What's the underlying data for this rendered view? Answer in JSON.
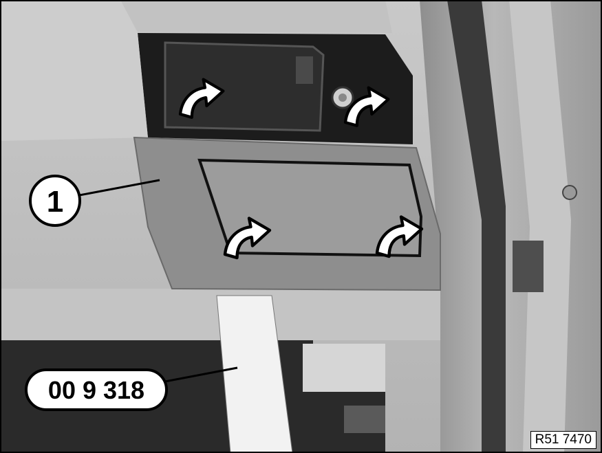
{
  "figure": {
    "part_callout": "1",
    "tool_callout": "00 9 318",
    "reference_code": "R51 7470"
  },
  "colors": {
    "dashboard": "#bdbdbd",
    "trim_panel": "#8c8c8c",
    "dark_cavity": "#1c1c1c",
    "door_frame": "#a9a9a9",
    "arrow_fill": "#ffffff",
    "outline": "#000000"
  },
  "icons": [
    "curved-arrow-icon"
  ]
}
